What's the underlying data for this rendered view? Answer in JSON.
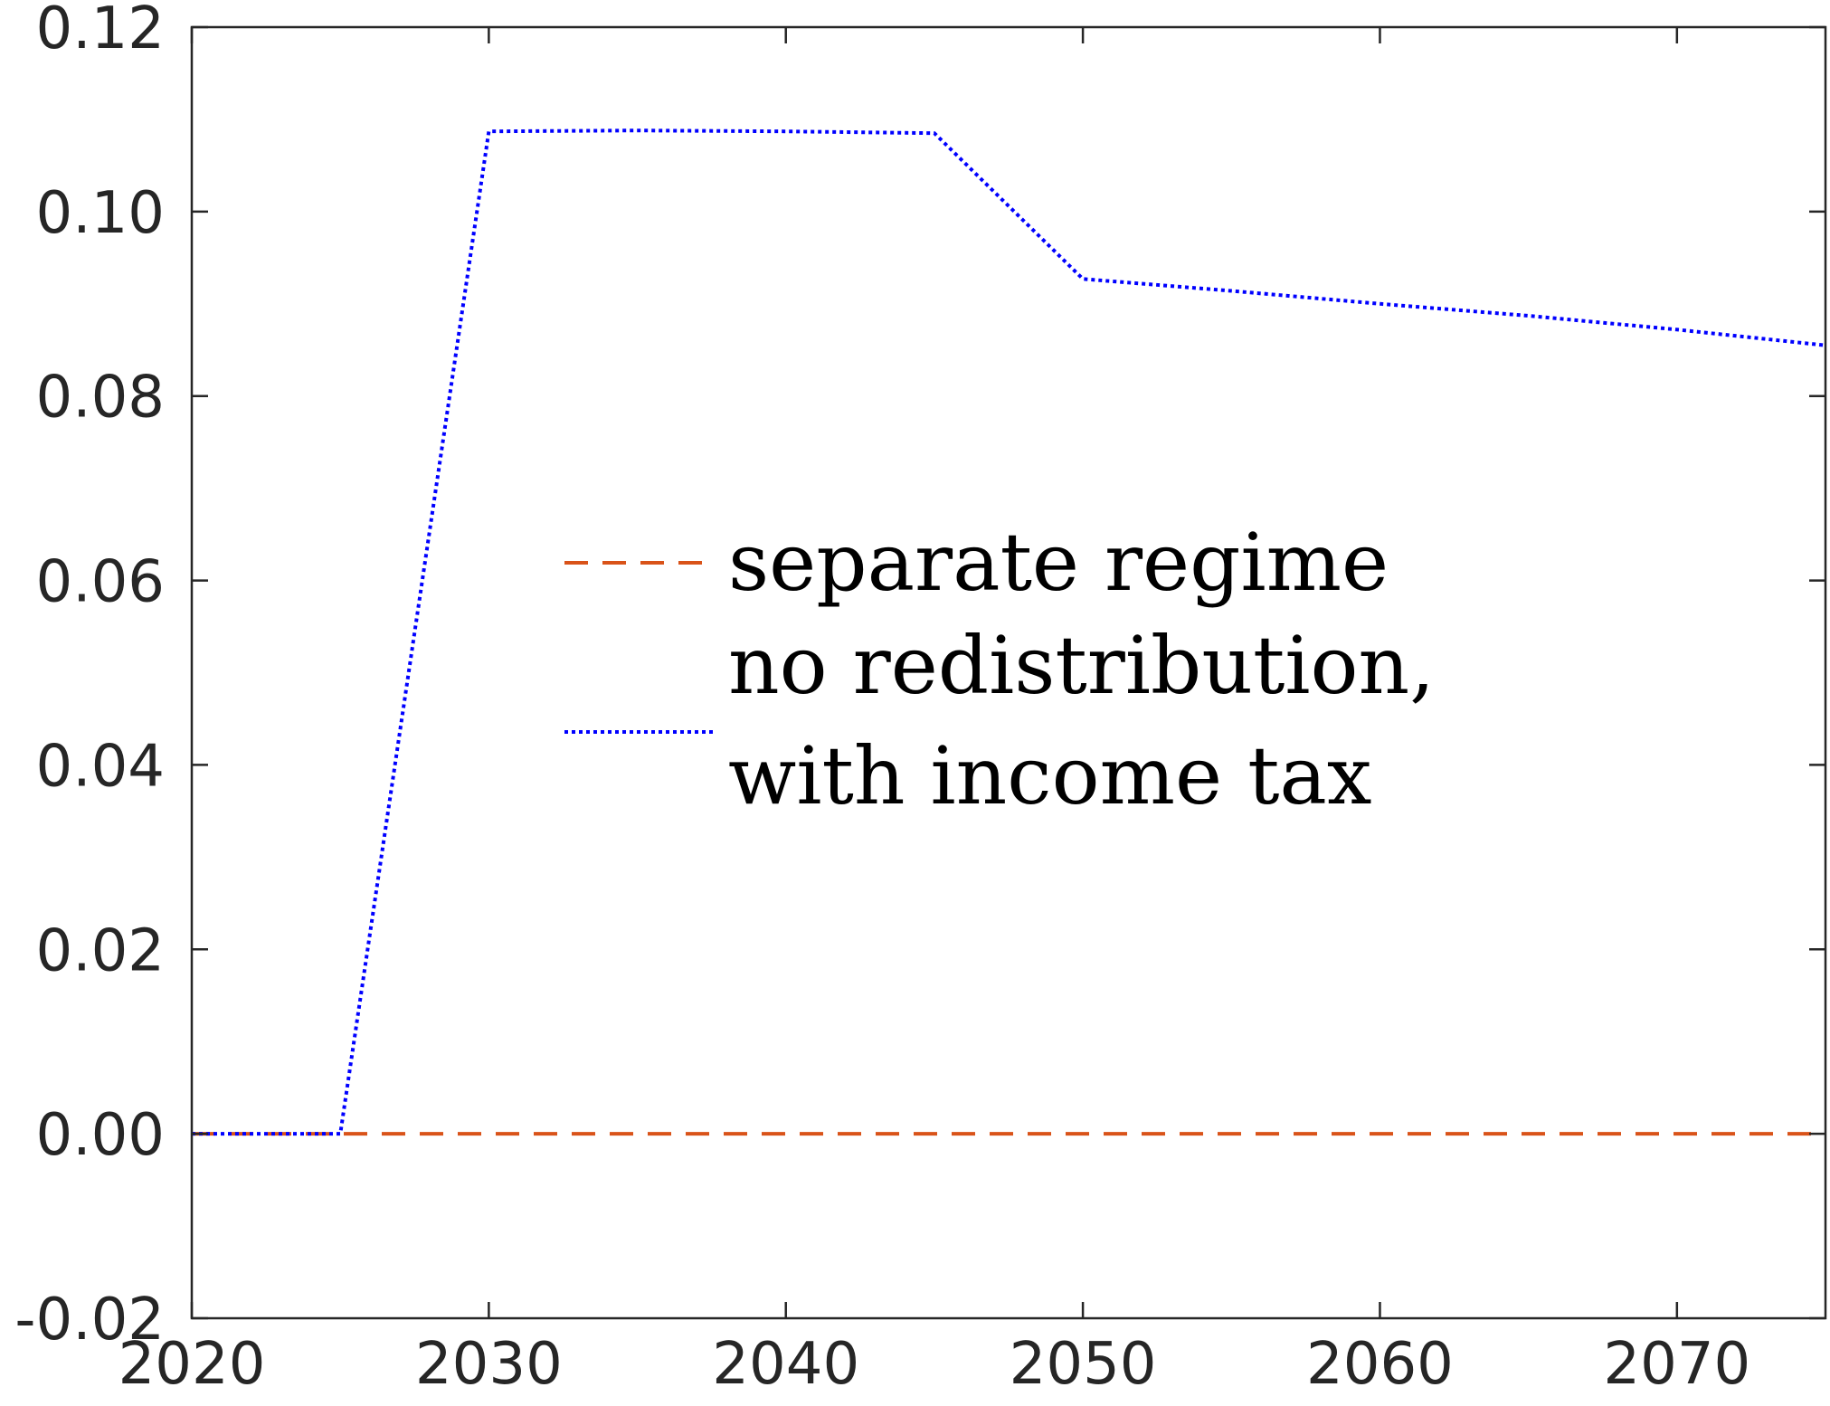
{
  "chart_data": {
    "type": "line",
    "title": "",
    "xlabel": "",
    "ylabel": "",
    "xlim": [
      2020,
      2075
    ],
    "ylim": [
      -0.02,
      0.12
    ],
    "x_ticks": [
      2020,
      2030,
      2040,
      2050,
      2060,
      2070
    ],
    "x_tick_labels": [
      "2020",
      "2030",
      "2040",
      "2050",
      "2060",
      "2070"
    ],
    "y_ticks": [
      -0.02,
      0.0,
      0.02,
      0.04,
      0.06,
      0.08,
      0.1,
      0.12
    ],
    "y_tick_labels": [
      "-0.02",
      "0.00",
      "0.02",
      "0.04",
      "0.06",
      "0.08",
      "0.10",
      "0.12"
    ],
    "grid": false,
    "legend_position": "center",
    "series": [
      {
        "name": "separate regime",
        "color": "#D95319",
        "line_style": "dashed",
        "x": [
          2020,
          2075
        ],
        "y": [
          0.0,
          0.0
        ]
      },
      {
        "name": "no redistribution, with income tax",
        "legend_lines": [
          "no redistribution,",
          "with income tax"
        ],
        "color": "#0000FF",
        "line_style": "dotted",
        "x": [
          2020,
          2025,
          2030,
          2035,
          2040,
          2045,
          2050,
          2055,
          2060,
          2065,
          2070,
          2075
        ],
        "y": [
          0.0,
          0.0,
          0.1087,
          0.1088,
          0.1087,
          0.1085,
          0.0927,
          0.0914,
          0.09,
          0.0887,
          0.0872,
          0.0855
        ]
      }
    ]
  }
}
